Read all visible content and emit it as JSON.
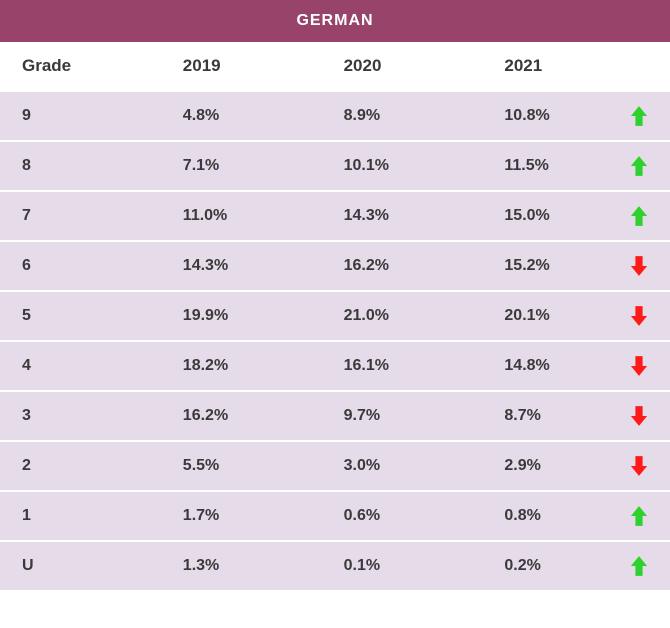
{
  "title": "GERMAN",
  "colors": {
    "title_bg": "#97436a",
    "title_fg": "#ffffff",
    "header_bg": "#ffffff",
    "row_bg": "#e6dbe9",
    "text": "#3a3a3a",
    "arrow_up": "#2fd12f",
    "arrow_down": "#ff1a1a"
  },
  "columns": [
    "Grade",
    "2019",
    "2020",
    "2021"
  ],
  "rows": [
    {
      "grade": "9",
      "y2019": "4.8%",
      "y2020": "8.9%",
      "y2021": "10.8%",
      "trend": "up"
    },
    {
      "grade": "8",
      "y2019": "7.1%",
      "y2020": "10.1%",
      "y2021": "11.5%",
      "trend": "up"
    },
    {
      "grade": "7",
      "y2019": "11.0%",
      "y2020": "14.3%",
      "y2021": "15.0%",
      "trend": "up"
    },
    {
      "grade": "6",
      "y2019": "14.3%",
      "y2020": "16.2%",
      "y2021": "15.2%",
      "trend": "down"
    },
    {
      "grade": "5",
      "y2019": "19.9%",
      "y2020": "21.0%",
      "y2021": "20.1%",
      "trend": "down"
    },
    {
      "grade": "4",
      "y2019": "18.2%",
      "y2020": "16.1%",
      "y2021": "14.8%",
      "trend": "down"
    },
    {
      "grade": "3",
      "y2019": "16.2%",
      "y2020": "9.7%",
      "y2021": "8.7%",
      "trend": "down"
    },
    {
      "grade": "2",
      "y2019": "5.5%",
      "y2020": "3.0%",
      "y2021": "2.9%",
      "trend": "down"
    },
    {
      "grade": "1",
      "y2019": "1.7%",
      "y2020": "0.6%",
      "y2021": "0.8%",
      "trend": "up"
    },
    {
      "grade": "U",
      "y2019": "1.3%",
      "y2020": "0.1%",
      "y2021": "0.2%",
      "trend": "up"
    }
  ],
  "type": "table",
  "fontsize": {
    "title": 16,
    "header": 17,
    "cell": 16
  }
}
